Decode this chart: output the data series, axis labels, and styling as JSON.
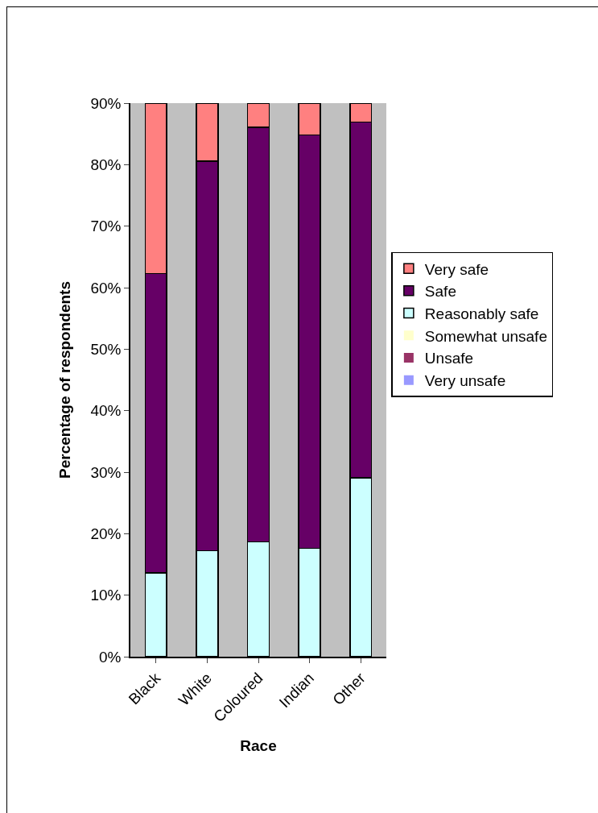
{
  "chart_data": {
    "type": "bar",
    "stacked": true,
    "xlabel": "Race",
    "ylabel": "Percentage of respondents",
    "categories": [
      "Black",
      "White",
      "Coloured",
      "Indian",
      "Other"
    ],
    "series": [
      {
        "name": "Very unsafe",
        "color": "#9999ff",
        "values": [
          0,
          0,
          0,
          0,
          0
        ]
      },
      {
        "name": "Unsafe",
        "color": "#993366",
        "values": [
          0,
          0,
          0,
          0,
          0
        ]
      },
      {
        "name": "Somewhat unsafe",
        "color": "#ffffcc",
        "values": [
          0,
          0,
          0,
          0,
          0
        ]
      },
      {
        "name": "Reasonably safe",
        "color": "#ccffff",
        "values": [
          13.6,
          17.2,
          18.7,
          17.6,
          29.1
        ]
      },
      {
        "name": "Safe",
        "color": "#660066",
        "values": [
          48.7,
          63.4,
          67.4,
          67.2,
          57.8
        ]
      },
      {
        "name": "Very safe",
        "color": "#ff8080",
        "values": [
          27.7,
          9.4,
          3.9,
          5.2,
          3.1
        ]
      }
    ],
    "ylim": [
      0,
      90
    ],
    "yticks": [
      {
        "value": 0,
        "label": "0%"
      },
      {
        "value": 10,
        "label": "10%"
      },
      {
        "value": 20,
        "label": "20%"
      },
      {
        "value": 30,
        "label": "30%"
      },
      {
        "value": 40,
        "label": "40%"
      },
      {
        "value": 50,
        "label": "50%"
      },
      {
        "value": 60,
        "label": "60%"
      },
      {
        "value": 70,
        "label": "70%"
      },
      {
        "value": 80,
        "label": "80%"
      },
      {
        "value": 90,
        "label": "90%"
      }
    ],
    "grid": false,
    "legend": "right"
  }
}
